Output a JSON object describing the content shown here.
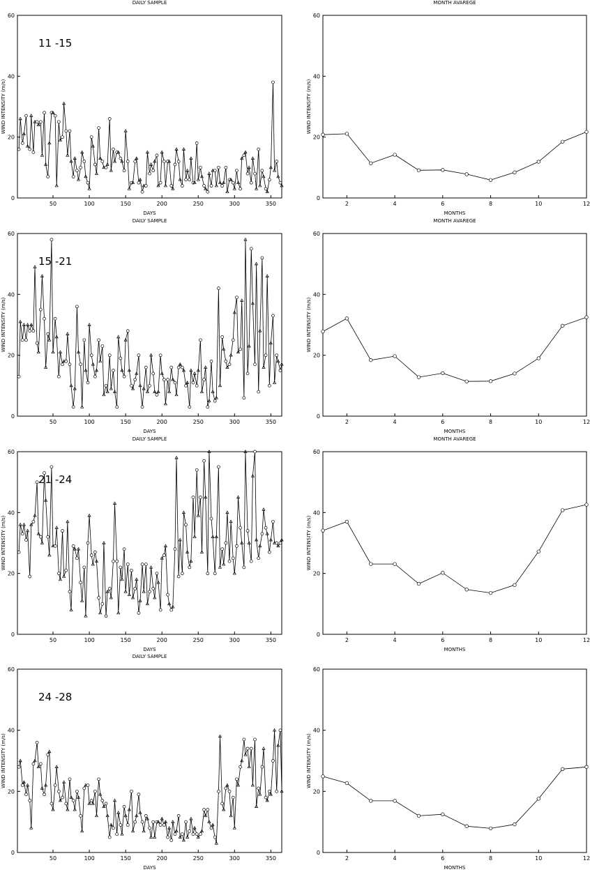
{
  "chart_data": [
    {
      "type": "line",
      "title": "DAILY SAMPLE",
      "inset_label": "11  -15",
      "xlabel": "DAYS",
      "ylabel": "WIND INTENSITY (m/s)",
      "xlim": [
        1,
        365
      ],
      "ylim": [
        0,
        60
      ],
      "xticks": [
        50,
        100,
        150,
        200,
        250,
        300,
        350
      ],
      "yticks": [
        0,
        20,
        40,
        60
      ],
      "x": [
        3,
        5,
        8,
        10,
        13,
        15,
        18,
        20,
        23,
        25,
        28,
        30,
        33,
        35,
        38,
        40,
        43,
        45,
        48,
        50,
        53,
        55,
        58,
        60,
        63,
        65,
        68,
        70,
        73,
        75,
        78,
        80,
        83,
        85,
        88,
        90,
        93,
        95,
        98,
        100,
        103,
        105,
        108,
        110,
        113,
        115,
        118,
        120,
        123,
        125,
        128,
        130,
        133,
        135,
        138,
        140,
        143,
        145,
        148,
        150,
        153,
        155,
        158,
        160,
        163,
        165,
        168,
        170,
        173,
        175,
        178,
        180,
        183,
        185,
        188,
        190,
        193,
        195,
        198,
        200,
        203,
        205,
        208,
        210,
        213,
        215,
        218,
        220,
        223,
        225,
        228,
        230,
        233,
        235,
        238,
        240,
        243,
        245,
        248,
        250,
        253,
        255,
        258,
        260,
        263,
        265,
        268,
        270,
        273,
        275,
        278,
        280,
        283,
        285,
        288,
        290,
        293,
        295,
        298,
        300,
        303,
        305,
        308,
        310,
        313,
        315,
        318,
        320,
        323,
        325,
        328,
        330,
        333,
        335,
        338,
        340,
        343,
        345,
        348,
        350,
        353,
        355,
        358,
        360,
        363,
        365
      ],
      "y": [
        16,
        26,
        18,
        21,
        27,
        17,
        16,
        27,
        15,
        25,
        25,
        24,
        25,
        14,
        28,
        11,
        7,
        18,
        28,
        28,
        27,
        4,
        25,
        19,
        20,
        31,
        22,
        14,
        22,
        12,
        7,
        13,
        9,
        6,
        10,
        15,
        12,
        7,
        5,
        3,
        20,
        17,
        11,
        8,
        23,
        13,
        12,
        10,
        10,
        11,
        26,
        9,
        16,
        12,
        15,
        15,
        13,
        12,
        9,
        22,
        12,
        3,
        5,
        5,
        12,
        13,
        5,
        6,
        2,
        4,
        4,
        15,
        8,
        11,
        9,
        12,
        14,
        4,
        5,
        15,
        12,
        4,
        12,
        12,
        4,
        3,
        11,
        16,
        12,
        6,
        4,
        16,
        6,
        9,
        6,
        13,
        5,
        5,
        18,
        6,
        10,
        7,
        4,
        3,
        2,
        8,
        4,
        9,
        9,
        4,
        10,
        5,
        4,
        5,
        10,
        2,
        6,
        6,
        5,
        3,
        9,
        5,
        3,
        13,
        14,
        15,
        8,
        10,
        5,
        13,
        8,
        3,
        16,
        4,
        9,
        7,
        3,
        2,
        6,
        10,
        38,
        9,
        12,
        7,
        5,
        4
      ],
      "markers": []
    },
    {
      "type": "line",
      "title": "MONTH AVAREGE",
      "xlabel": "MONTHS",
      "ylabel": "WIND INTENSITY (m/s)",
      "xlim": [
        1,
        12
      ],
      "ylim": [
        0,
        60
      ],
      "xticks": [
        2,
        4,
        6,
        8,
        10,
        12
      ],
      "yticks": [
        0,
        20,
        40,
        60
      ],
      "x": [
        1,
        2,
        3,
        4,
        5,
        6,
        7,
        8,
        9,
        10,
        11,
        12
      ],
      "y": [
        20.8,
        21.1,
        11.4,
        14.2,
        9.1,
        9.2,
        7.8,
        5.9,
        8.4,
        11.9,
        18.5,
        21.7
      ]
    },
    {
      "type": "line",
      "title": "DAILY SAMPLE",
      "inset_label": "15  -21",
      "xlabel": "DAYS",
      "ylabel": "WIND INTENSITY (m/s)",
      "xlim": [
        1,
        365
      ],
      "ylim": [
        0,
        60
      ],
      "xticks": [
        50,
        100,
        150,
        200,
        250,
        300,
        350
      ],
      "yticks": [
        0,
        20,
        40,
        60
      ],
      "x": [
        3,
        5,
        8,
        10,
        13,
        15,
        18,
        20,
        23,
        25,
        28,
        30,
        33,
        35,
        38,
        40,
        43,
        45,
        48,
        50,
        53,
        55,
        58,
        60,
        63,
        65,
        68,
        70,
        73,
        75,
        78,
        80,
        83,
        85,
        88,
        90,
        93,
        95,
        98,
        100,
        103,
        105,
        108,
        110,
        113,
        115,
        118,
        120,
        123,
        125,
        128,
        130,
        133,
        135,
        138,
        140,
        143,
        145,
        148,
        150,
        153,
        155,
        158,
        160,
        163,
        165,
        168,
        170,
        173,
        175,
        178,
        180,
        183,
        185,
        188,
        190,
        193,
        195,
        198,
        200,
        203,
        205,
        208,
        210,
        213,
        215,
        218,
        220,
        223,
        225,
        228,
        230,
        233,
        235,
        238,
        240,
        243,
        245,
        248,
        250,
        253,
        255,
        258,
        260,
        263,
        265,
        268,
        270,
        273,
        275,
        278,
        280,
        283,
        285,
        288,
        290,
        293,
        295,
        298,
        300,
        303,
        305,
        308,
        310,
        313,
        315,
        318,
        320,
        323,
        325,
        328,
        330,
        333,
        335,
        338,
        340,
        343,
        345,
        348,
        350,
        353,
        355,
        358,
        360,
        363,
        365
      ],
      "y": [
        13,
        31,
        25,
        30,
        25,
        30,
        28,
        30,
        28,
        49,
        24,
        21,
        35,
        46,
        32,
        16,
        27,
        25,
        58,
        21,
        32,
        26,
        13,
        21,
        17,
        18,
        18,
        27,
        17,
        10,
        3,
        9,
        36,
        21,
        17,
        3,
        25,
        15,
        11,
        30,
        20,
        17,
        13,
        15,
        25,
        18,
        23,
        7,
        10,
        8,
        20,
        9,
        15,
        8,
        3,
        26,
        19,
        15,
        13,
        25,
        28,
        15,
        10,
        9,
        12,
        14,
        20,
        10,
        3,
        9,
        16,
        8,
        10,
        20,
        14,
        8,
        7,
        8,
        20,
        14,
        12,
        4,
        12,
        8,
        16,
        12,
        11,
        7,
        16,
        17,
        16,
        15,
        10,
        11,
        3,
        15,
        11,
        14,
        10,
        15,
        25,
        8,
        12,
        16,
        3,
        5,
        18,
        8,
        5,
        6,
        42,
        10,
        26,
        22,
        18,
        16,
        17,
        20,
        25,
        34,
        39,
        21,
        22,
        38,
        6,
        58,
        14,
        23,
        55,
        37,
        17,
        50,
        8,
        28,
        52,
        16,
        20,
        46,
        10,
        24,
        33,
        11,
        20,
        18,
        15,
        17
      ],
      "markers": []
    },
    {
      "type": "line",
      "title": "MONTH AVAREGE",
      "xlabel": "MONTHS",
      "ylabel": "WIND INTENSITY (m/s)",
      "xlim": [
        1,
        12
      ],
      "ylim": [
        0,
        60
      ],
      "xticks": [
        2,
        4,
        6,
        8,
        10,
        12
      ],
      "yticks": [
        0,
        20,
        40,
        60
      ],
      "x": [
        1,
        2,
        3,
        4,
        5,
        6,
        7,
        8,
        9,
        10,
        11,
        12
      ],
      "y": [
        27.8,
        32.1,
        18.4,
        19.7,
        12.8,
        14.1,
        11.4,
        11.5,
        14.0,
        19.0,
        29.7,
        32.5
      ]
    },
    {
      "type": "line",
      "title": "DAILY SAMPLE",
      "inset_label": "21  -24",
      "xlabel": "DAYS",
      "ylabel": "WIND INTENSITY (m/s)",
      "xlim": [
        1,
        365
      ],
      "ylim": [
        0,
        60
      ],
      "xticks": [
        50,
        100,
        150,
        200,
        250,
        300,
        350
      ],
      "yticks": [
        0,
        20,
        40,
        60
      ],
      "x": [
        3,
        5,
        8,
        10,
        13,
        15,
        18,
        20,
        23,
        25,
        28,
        30,
        33,
        35,
        38,
        40,
        43,
        45,
        48,
        50,
        53,
        55,
        58,
        60,
        63,
        65,
        68,
        70,
        73,
        75,
        78,
        80,
        83,
        85,
        88,
        90,
        93,
        95,
        98,
        100,
        103,
        105,
        108,
        110,
        113,
        115,
        118,
        120,
        123,
        125,
        128,
        130,
        133,
        135,
        138,
        140,
        143,
        145,
        148,
        150,
        153,
        155,
        158,
        160,
        163,
        165,
        168,
        170,
        173,
        175,
        178,
        180,
        183,
        185,
        188,
        190,
        193,
        195,
        198,
        200,
        203,
        205,
        208,
        210,
        213,
        215,
        218,
        220,
        223,
        225,
        228,
        230,
        233,
        235,
        238,
        240,
        243,
        245,
        248,
        250,
        253,
        255,
        258,
        260,
        263,
        265,
        268,
        270,
        273,
        275,
        278,
        280,
        283,
        285,
        288,
        290,
        293,
        295,
        298,
        300,
        303,
        305,
        308,
        310,
        313,
        315,
        318,
        320,
        323,
        325,
        328,
        330,
        333,
        335,
        338,
        340,
        343,
        345,
        348,
        350,
        353,
        355,
        358,
        360,
        363,
        365
      ],
      "y": [
        27,
        36,
        33,
        36,
        31,
        34,
        19,
        36,
        37,
        39,
        50,
        33,
        32,
        30,
        53,
        44,
        32,
        26,
        55,
        29,
        29,
        35,
        20,
        18,
        34,
        19,
        21,
        37,
        14,
        8,
        29,
        28,
        25,
        28,
        17,
        11,
        22,
        6,
        30,
        39,
        26,
        23,
        27,
        24,
        12,
        7,
        10,
        30,
        6,
        14,
        15,
        12,
        24,
        43,
        24,
        7,
        22,
        18,
        28,
        14,
        23,
        13,
        21,
        12,
        15,
        18,
        7,
        11,
        23,
        14,
        23,
        10,
        14,
        22,
        15,
        12,
        20,
        17,
        8,
        25,
        26,
        29,
        13,
        10,
        8,
        9,
        28,
        58,
        19,
        31,
        20,
        40,
        36,
        27,
        22,
        24,
        45,
        32,
        54,
        39,
        45,
        27,
        57,
        45,
        20,
        60,
        38,
        32,
        20,
        32,
        55,
        22,
        28,
        23,
        30,
        40,
        24,
        37,
        25,
        20,
        29,
        45,
        35,
        30,
        22,
        60,
        34,
        30,
        24,
        52,
        60,
        31,
        25,
        29,
        33,
        41,
        35,
        33,
        27,
        31,
        37,
        30,
        30,
        29,
        30,
        31
      ],
      "markers": []
    },
    {
      "type": "line",
      "title": "MONTH AVAREGE",
      "xlabel": "MONTHS",
      "ylabel": "WIND INTENSITY (m/s)",
      "xlim": [
        1,
        12
      ],
      "ylim": [
        0,
        60
      ],
      "xticks": [
        2,
        4,
        6,
        8,
        10,
        12
      ],
      "yticks": [
        0,
        20,
        40,
        60
      ],
      "x": [
        1,
        2,
        3,
        4,
        5,
        6,
        7,
        8,
        9,
        10,
        11,
        12
      ],
      "y": [
        34.1,
        37.0,
        23.1,
        23.1,
        16.6,
        20.2,
        14.7,
        13.6,
        16.2,
        27.2,
        40.8,
        42.6
      ]
    },
    {
      "type": "line",
      "title": "DAILY SAMPLE",
      "inset_label": "24  -28",
      "xlabel": "DAYS",
      "ylabel": "WIND INTENSITY (m/s)",
      "xlim": [
        1,
        365
      ],
      "ylim": [
        0,
        60
      ],
      "xticks": [
        50,
        100,
        150,
        200,
        250,
        300,
        350
      ],
      "yticks": [
        0,
        20,
        40,
        60
      ],
      "x": [
        3,
        5,
        8,
        10,
        13,
        15,
        18,
        20,
        23,
        25,
        28,
        30,
        33,
        35,
        38,
        40,
        43,
        45,
        48,
        50,
        53,
        55,
        58,
        60,
        63,
        65,
        68,
        70,
        73,
        75,
        78,
        80,
        83,
        85,
        88,
        90,
        93,
        95,
        98,
        100,
        103,
        105,
        108,
        110,
        113,
        115,
        118,
        120,
        123,
        125,
        128,
        130,
        133,
        135,
        138,
        140,
        143,
        145,
        148,
        150,
        153,
        155,
        158,
        160,
        163,
        165,
        168,
        170,
        173,
        175,
        178,
        180,
        183,
        185,
        188,
        190,
        193,
        195,
        198,
        200,
        203,
        205,
        208,
        210,
        213,
        215,
        218,
        220,
        223,
        225,
        228,
        230,
        233,
        235,
        238,
        240,
        243,
        245,
        248,
        250,
        253,
        255,
        258,
        260,
        263,
        265,
        268,
        270,
        273,
        275,
        278,
        280,
        283,
        285,
        288,
        290,
        293,
        295,
        298,
        300,
        303,
        305,
        308,
        310,
        313,
        315,
        318,
        320,
        323,
        325,
        328,
        330,
        333,
        335,
        338,
        340,
        343,
        345,
        348,
        350,
        353,
        355,
        358,
        360,
        363,
        365
      ],
      "y": [
        28,
        30,
        22,
        23,
        19,
        22,
        17,
        8,
        29,
        30,
        36,
        28,
        29,
        21,
        19,
        22,
        32,
        33,
        16,
        14,
        22,
        28,
        20,
        17,
        18,
        23,
        16,
        14,
        24,
        18,
        17,
        14,
        20,
        18,
        12,
        7,
        21,
        22,
        22,
        16,
        17,
        16,
        20,
        12,
        24,
        19,
        17,
        15,
        16,
        12,
        5,
        9,
        8,
        17,
        6,
        13,
        9,
        6,
        15,
        12,
        9,
        14,
        20,
        7,
        10,
        12,
        19,
        13,
        10,
        7,
        12,
        11,
        8,
        5,
        10,
        5,
        10,
        10,
        9,
        11,
        9,
        10,
        5,
        8,
        4,
        10,
        6,
        7,
        12,
        5,
        6,
        4,
        10,
        5,
        7,
        11,
        6,
        8,
        6,
        5,
        6,
        7,
        14,
        12,
        14,
        10,
        8,
        9,
        5,
        3,
        20,
        38,
        16,
        14,
        21,
        22,
        20,
        12,
        18,
        8,
        24,
        22,
        28,
        30,
        37,
        32,
        34,
        28,
        34,
        22,
        37,
        15,
        21,
        19,
        28,
        34,
        18,
        17,
        20,
        19,
        30,
        40,
        20,
        35,
        40,
        20
      ],
      "markers": []
    },
    {
      "type": "line",
      "title": "",
      "xlabel": "MONTHS",
      "ylabel": "WIND INTENSITY (m/s)",
      "xlim": [
        1,
        12
      ],
      "ylim": [
        0,
        60
      ],
      "xticks": [
        2,
        4,
        6,
        8,
        10,
        12
      ],
      "yticks": [
        0,
        20,
        40,
        60
      ],
      "x": [
        1,
        2,
        3,
        4,
        5,
        6,
        7,
        8,
        9,
        10,
        11,
        12
      ],
      "y": [
        24.9,
        22.7,
        16.9,
        16.9,
        12.0,
        12.5,
        8.6,
        7.9,
        9.2,
        17.6,
        27.3,
        28.0
      ]
    }
  ]
}
